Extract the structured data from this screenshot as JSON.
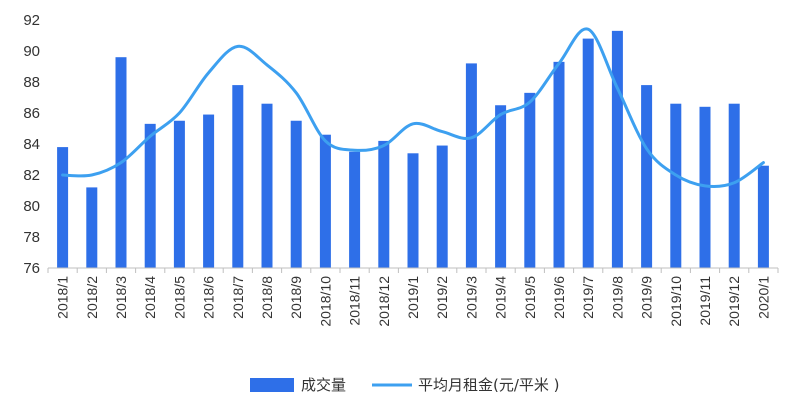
{
  "chart_data": {
    "type": "bar",
    "categories": [
      "2018/1",
      "2018/2",
      "2018/3",
      "2018/4",
      "2018/5",
      "2018/6",
      "2018/7",
      "2018/8",
      "2018/9",
      "2018/10",
      "2018/11",
      "2018/12",
      "2019/1",
      "2019/2",
      "2019/3",
      "2019/4",
      "2019/5",
      "2019/6",
      "2019/7",
      "2019/8",
      "2019/9",
      "2019/10",
      "2019/11",
      "2019/12",
      "2020/1"
    ],
    "ylim": [
      76,
      92
    ],
    "yticks": [
      76,
      78,
      80,
      82,
      84,
      86,
      88,
      90,
      92
    ],
    "xlabel": "",
    "ylabel": "",
    "grid": false,
    "legend_position": "bottom",
    "series": [
      {
        "name": "成交量",
        "type": "bar",
        "color": "#2E6FE8",
        "values": [
          83.8,
          81.2,
          89.6,
          85.3,
          85.5,
          85.9,
          87.8,
          86.6,
          85.5,
          84.6,
          83.5,
          84.2,
          83.4,
          83.9,
          89.2,
          86.5,
          87.3,
          89.3,
          90.8,
          91.3,
          87.8,
          86.6,
          86.4,
          86.6,
          82.6
        ]
      },
      {
        "name": "平均月租金(元/平米 )",
        "type": "line",
        "color": "#3DA0F0",
        "values": [
          82.0,
          82.0,
          82.8,
          84.5,
          86.0,
          88.6,
          90.3,
          89.1,
          87.3,
          84.2,
          83.6,
          83.9,
          85.3,
          84.8,
          84.4,
          85.9,
          86.7,
          89.2,
          91.4,
          87.6,
          83.7,
          82.0,
          81.3,
          81.5,
          82.8
        ]
      }
    ]
  }
}
